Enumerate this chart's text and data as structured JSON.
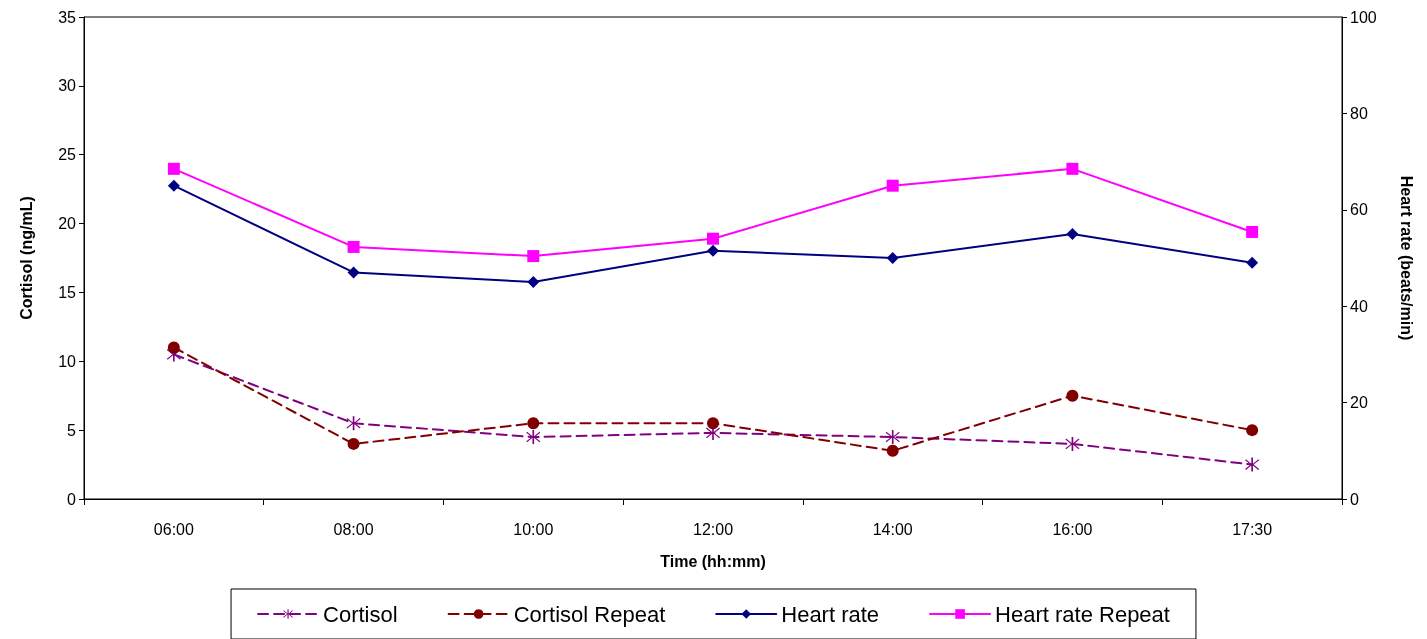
{
  "chart_data": {
    "type": "line",
    "xlabel": "Time (hh:mm)",
    "ylabel": "Cortisol (ng/mL)",
    "y2label": "Heart rate (beats/min)",
    "categories": [
      "06:00",
      "08:00",
      "10:00",
      "12:00",
      "14:00",
      "16:00",
      "17:30"
    ],
    "series": [
      {
        "name": "Cortisol",
        "color": "#800080",
        "marker": "cross",
        "line_style": "dashed",
        "values": [
          10.5,
          5.5,
          4.5,
          4.8,
          4.5,
          4.0,
          2.5
        ]
      },
      {
        "name": "Cortisol Repeat",
        "color": "#800000",
        "marker": "circle",
        "line_style": "dashed",
        "values": [
          11,
          4,
          5.5,
          5.5,
          3.5,
          7.5,
          5
        ]
      },
      {
        "name": "Heart rate",
        "color": "#000080",
        "marker": "diamond",
        "line_style": "solid",
        "axis": "y2",
        "values": [
          65,
          47,
          45,
          51.5,
          50,
          55,
          49
        ]
      },
      {
        "name": "Heart rate Repeat",
        "color": "#ff00ff",
        "marker": "square",
        "line_style": "solid",
        "axis": "y2",
        "values": [
          68.5,
          52.3,
          50.4,
          54,
          65,
          68.5,
          55.4
        ]
      }
    ],
    "ylim": [
      0,
      35
    ],
    "yticks": [
      0,
      5,
      10,
      15,
      20,
      25,
      30,
      35
    ],
    "y2lim": [
      0,
      100
    ],
    "y2ticks": [
      0,
      20,
      40,
      60,
      80,
      100
    ],
    "grid": false,
    "legend": "bottom"
  }
}
